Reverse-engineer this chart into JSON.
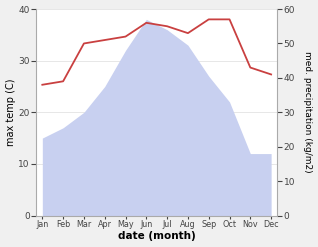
{
  "months": [
    "Jan",
    "Feb",
    "Mar",
    "Apr",
    "May",
    "Jun",
    "Jul",
    "Aug",
    "Sep",
    "Oct",
    "Nov",
    "Dec"
  ],
  "temp": [
    15,
    17,
    20,
    25,
    32,
    38,
    36,
    33,
    27,
    22,
    12,
    12
  ],
  "precip": [
    38,
    39,
    50,
    51,
    52,
    56,
    55,
    53,
    57,
    57,
    43,
    41
  ],
  "temp_fill_color": "#c8d0f0",
  "precip_color": "#c94040",
  "xlabel": "date (month)",
  "ylabel_left": "max temp (C)",
  "ylabel_right": "med. precipitation (kg/m2)",
  "ylim_left": [
    0,
    40
  ],
  "ylim_right": [
    0,
    60
  ],
  "yticks_left": [
    0,
    10,
    20,
    30,
    40
  ],
  "yticks_right": [
    0,
    10,
    20,
    30,
    40,
    50,
    60
  ],
  "bg_color": "#f0f0f0",
  "plot_bg_color": "#ffffff"
}
